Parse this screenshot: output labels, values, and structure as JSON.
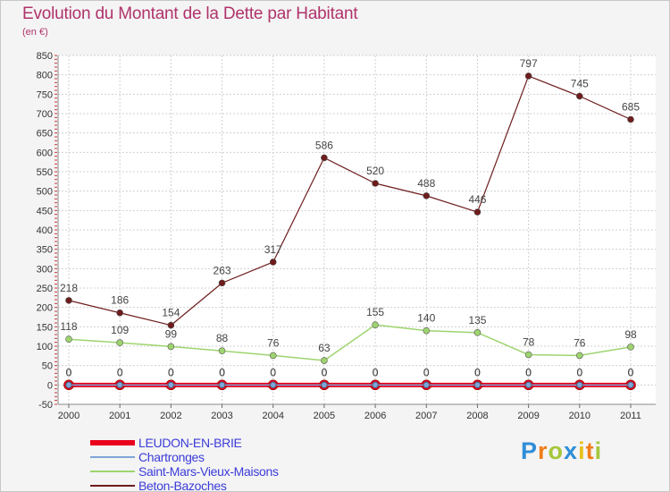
{
  "title": "Evolution du Montant de la Dette par Habitant",
  "subtitle": "(en €)",
  "brand": "Proxiti",
  "chart_data": {
    "type": "line",
    "title": "Evolution du Montant de la Dette par Habitant",
    "subtitle": "(en €)",
    "xlabel": "",
    "ylabel": "",
    "x": [
      "2000",
      "2001",
      "2002",
      "2003",
      "2004",
      "2005",
      "2006",
      "2007",
      "2008",
      "2009",
      "2010",
      "2011"
    ],
    "ylim": [
      -50,
      850
    ],
    "yticks": [
      -50,
      0,
      50,
      100,
      150,
      200,
      250,
      300,
      350,
      400,
      450,
      500,
      550,
      600,
      650,
      700,
      750,
      800,
      850
    ],
    "grid": true,
    "legend_position": "bottom-left",
    "series": [
      {
        "name": "LEUDON-EN-BRIE",
        "color": "#e8001c",
        "values": [
          0,
          0,
          0,
          0,
          0,
          0,
          0,
          0,
          0,
          0,
          0,
          0
        ]
      },
      {
        "name": "Chartronges",
        "color": "#7ea6d8",
        "values": [
          0,
          0,
          0,
          0,
          0,
          0,
          0,
          0,
          0,
          0,
          0,
          0
        ]
      },
      {
        "name": "Saint-Mars-Vieux-Maisons",
        "color": "#9ed46f",
        "values": [
          118,
          109,
          99,
          88,
          76,
          63,
          155,
          140,
          135,
          78,
          76,
          98
        ]
      },
      {
        "name": "Beton-Bazoches",
        "color": "#6e1c1c",
        "values": [
          218,
          186,
          154,
          263,
          317,
          586,
          520,
          488,
          446,
          797,
          745,
          685
        ]
      }
    ]
  }
}
